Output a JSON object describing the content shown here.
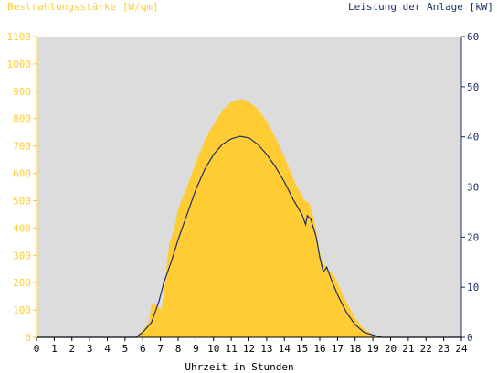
{
  "chart_data": {
    "type": "area",
    "title_left": "Bestrahlungsstärke [W/qm]",
    "title_right": "Leistung der Anlage [kW]",
    "xlabel": "Uhrzeit in Stunden",
    "xlim": [
      0,
      24
    ],
    "ylim_left": [
      0,
      1100
    ],
    "ylim_right": [
      0,
      60
    ],
    "x_ticks": [
      "0",
      "1",
      "2",
      "3",
      "4",
      "5",
      "6",
      "7",
      "8",
      "9",
      "10",
      "11",
      "12",
      "13",
      "14",
      "15",
      "16",
      "17",
      "18",
      "19",
      "20",
      "21",
      "22",
      "23",
      "24"
    ],
    "y_ticks_left": [
      "0",
      "100",
      "200",
      "300",
      "400",
      "500",
      "600",
      "700",
      "800",
      "900",
      "1000",
      "1100"
    ],
    "y_ticks_right": [
      "0",
      "10",
      "20",
      "30",
      "40",
      "50",
      "60"
    ],
    "grid": false,
    "colors": {
      "irradiance": "#ffcc33",
      "power": "#1a2f6e",
      "plot_background": "#dcdcdc",
      "left_axis_text": "#ffcc33",
      "right_axis_text": "#1a2f6e"
    },
    "series": [
      {
        "axis": "left",
        "unit": "W/qm",
        "x": [
          0,
          5.6,
          5.9,
          6.2,
          6.35,
          6.5,
          6.6,
          6.9,
          7.05,
          7.2,
          7.35,
          7.5,
          7.8,
          8.0,
          8.5,
          9.0,
          9.5,
          10.0,
          10.5,
          11.0,
          11.5,
          11.8,
          12.0,
          12.5,
          13.0,
          13.5,
          14.0,
          14.5,
          14.8,
          15.0,
          15.1,
          15.2,
          15.4,
          15.6,
          15.8,
          16.0,
          16.2,
          16.4,
          16.6,
          16.8,
          17.0,
          17.5,
          18.0,
          18.5,
          19.0,
          19.3,
          19.5,
          24
        ],
        "values": [
          0,
          0,
          20,
          40,
          60,
          120,
          125,
          110,
          100,
          160,
          260,
          340,
          400,
          470,
          550,
          640,
          720,
          780,
          830,
          860,
          870,
          868,
          860,
          835,
          790,
          730,
          660,
          580,
          540,
          520,
          500,
          500,
          490,
          450,
          390,
          310,
          270,
          255,
          240,
          230,
          200,
          130,
          70,
          30,
          10,
          3,
          0,
          0
        ]
      },
      {
        "axis": "right",
        "unit": "kW",
        "x": [
          0,
          5.6,
          6.0,
          6.5,
          6.9,
          7.2,
          7.4,
          7.6,
          8.0,
          8.5,
          9.0,
          9.5,
          10.0,
          10.5,
          11.0,
          11.5,
          12.0,
          12.5,
          13.0,
          13.5,
          14.0,
          14.5,
          15.0,
          15.2,
          15.3,
          15.5,
          15.8,
          16.0,
          16.2,
          16.4,
          16.6,
          17.0,
          17.5,
          18.0,
          18.5,
          19.0,
          19.3,
          19.5,
          24
        ],
        "values": [
          0,
          0,
          1,
          3,
          7,
          11,
          13,
          15,
          19.5,
          24.5,
          29.5,
          33.5,
          36.5,
          38.5,
          39.6,
          40.1,
          39.8,
          38.5,
          36.5,
          34,
          31,
          27.5,
          24.5,
          22.5,
          24.3,
          23.5,
          20,
          16,
          13,
          14,
          12,
          8.5,
          5,
          2.5,
          1,
          0.5,
          0.2,
          0,
          0
        ]
      }
    ]
  }
}
